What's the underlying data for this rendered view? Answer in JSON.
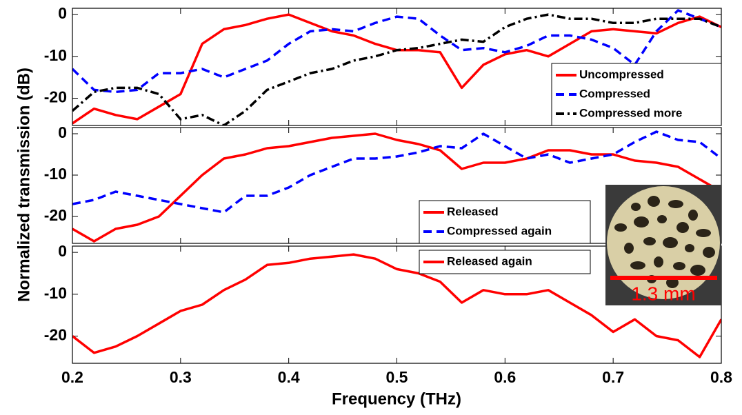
{
  "y_label": "Normalized transmission (dB)",
  "x_label": "Frequency (THz)",
  "inset": {
    "scale_label": "1.3 mm"
  },
  "chart_data": [
    {
      "type": "line",
      "legend": "lower right",
      "x": [
        0.2,
        0.22,
        0.24,
        0.26,
        0.28,
        0.3,
        0.32,
        0.34,
        0.36,
        0.38,
        0.4,
        0.42,
        0.44,
        0.46,
        0.48,
        0.5,
        0.52,
        0.54,
        0.56,
        0.58,
        0.6,
        0.62,
        0.64,
        0.66,
        0.68,
        0.7,
        0.72,
        0.74,
        0.76,
        0.78,
        0.8
      ],
      "xlim": [
        0.2,
        0.8
      ],
      "ylim": [
        -26.5,
        1.5
      ],
      "yticks": [
        -20,
        -10,
        0
      ],
      "series": [
        {
          "name": "Uncompressed",
          "color": "#ff0000",
          "dash": "solid",
          "values": [
            -26,
            -22.5,
            -24,
            -25,
            -22,
            -19,
            -7,
            -3.5,
            -2.5,
            -1,
            0,
            -2,
            -4,
            -5,
            -7,
            -8.5,
            -8.5,
            -9,
            -17.5,
            -12,
            -9.5,
            -8.5,
            -10,
            -7,
            -4,
            -3.5,
            -4,
            -4.5,
            -2,
            -0.5,
            -3
          ]
        },
        {
          "name": "Compressed",
          "color": "#0000ff",
          "dash": "dashed",
          "values": [
            -13,
            -18,
            -18.5,
            -18,
            -14,
            -14,
            -13,
            -15,
            -13,
            -11,
            -7,
            -4,
            -3.5,
            -4,
            -2,
            -0.5,
            -1,
            -5,
            -8.5,
            -8,
            -9,
            -7.5,
            -5,
            -5,
            -6,
            -8,
            -12,
            -4,
            1,
            -1,
            -3
          ]
        },
        {
          "name": "Compressed more",
          "color": "#000000",
          "dash": "dashdot",
          "values": [
            -23,
            -18.5,
            -17.5,
            -17.5,
            -19,
            -25,
            -24,
            -26.5,
            -23,
            -18,
            -16,
            -14,
            -13,
            -11,
            -10,
            -8.5,
            -8,
            -7,
            -6,
            -6.5,
            -3,
            -1,
            0,
            -1,
            -1,
            -2,
            -2,
            -1,
            -1,
            -1,
            -3
          ]
        }
      ]
    },
    {
      "type": "line",
      "legend": "lower right",
      "x": [
        0.2,
        0.22,
        0.24,
        0.26,
        0.28,
        0.3,
        0.32,
        0.34,
        0.36,
        0.38,
        0.4,
        0.42,
        0.44,
        0.46,
        0.48,
        0.5,
        0.52,
        0.54,
        0.56,
        0.58,
        0.6,
        0.62,
        0.64,
        0.66,
        0.68,
        0.7,
        0.72,
        0.74,
        0.76,
        0.78,
        0.8
      ],
      "xlim": [
        0.2,
        0.8
      ],
      "ylim": [
        -26.5,
        1.5
      ],
      "yticks": [
        -20,
        -10,
        0
      ],
      "series": [
        {
          "name": "Released",
          "color": "#ff0000",
          "dash": "solid",
          "values": [
            -23,
            -26,
            -23,
            -22,
            -20,
            -15,
            -10,
            -6,
            -5,
            -3.5,
            -3,
            -2,
            -1,
            -0.5,
            0,
            -1.5,
            -2.5,
            -4,
            -8.5,
            -7,
            -7,
            -6,
            -4,
            -4,
            -5,
            -5,
            -6.5,
            -7,
            -8,
            -11,
            -14
          ]
        },
        {
          "name": "Compressed again",
          "color": "#0000ff",
          "dash": "dashed",
          "values": [
            -17,
            -16,
            -14,
            -15,
            -16,
            -17,
            -18,
            -19,
            -15,
            -15,
            -13,
            -10,
            -8,
            -6,
            -6,
            -5.5,
            -4.5,
            -3,
            -3.5,
            0,
            -3,
            -6,
            -5,
            -7,
            -6,
            -5,
            -2,
            0.5,
            -1.5,
            -2,
            -6
          ]
        }
      ]
    },
    {
      "type": "line",
      "legend": "upper right",
      "x": [
        0.2,
        0.22,
        0.24,
        0.26,
        0.28,
        0.3,
        0.32,
        0.34,
        0.36,
        0.38,
        0.4,
        0.42,
        0.44,
        0.46,
        0.48,
        0.5,
        0.52,
        0.54,
        0.56,
        0.58,
        0.6,
        0.62,
        0.64,
        0.66,
        0.68,
        0.7,
        0.72,
        0.74,
        0.76,
        0.78,
        0.8
      ],
      "xlim": [
        0.2,
        0.8
      ],
      "xticks": [
        0.2,
        0.3,
        0.4,
        0.5,
        0.6,
        0.7,
        0.8
      ],
      "ylim": [
        -26.5,
        1.5
      ],
      "yticks": [
        -20,
        -10,
        0
      ],
      "series": [
        {
          "name": "Released again",
          "color": "#ff0000",
          "dash": "solid",
          "values": [
            -20,
            -24,
            -22.5,
            -20,
            -17,
            -14,
            -12.5,
            -9,
            -6.5,
            -3,
            -2.5,
            -1.5,
            -1,
            -0.5,
            -1.5,
            -4,
            -5,
            -7,
            -12,
            -9,
            -10,
            -10,
            -9,
            -12,
            -15,
            -19,
            -16,
            -20,
            -21,
            -25,
            -16
          ]
        }
      ]
    }
  ]
}
